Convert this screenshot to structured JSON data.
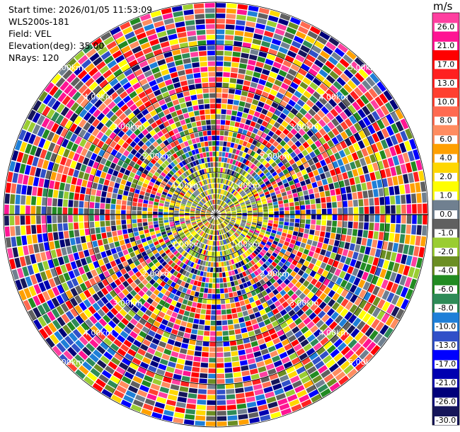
{
  "header": {
    "start_time": "Start time: 2026/01/05 11:53:09",
    "instrument": "WLS200s-181",
    "field": "Field: VEL",
    "elevation": "Elevation(deg): 35.00",
    "nrays": "NRays: 120"
  },
  "chart_data": {
    "type": "heatmap",
    "projection": "polar PPI scan",
    "field": "VEL",
    "nrays": 120,
    "range_rings_km": [
      1.0,
      2.0,
      3.0,
      4.0,
      5.0
    ],
    "ring_labels": [
      "1.00km",
      "2.00km",
      "3.00km",
      "4.00km",
      "5.00km"
    ],
    "max_range_km": 5.0,
    "colorbar": {
      "unit": "m/s",
      "ticks": [
        "26.0",
        "21.0",
        "17.0",
        "13.0",
        "10.0",
        "8.0",
        "6.0",
        "4.0",
        "2.0",
        "1.0",
        "0.0",
        "-1.0",
        "-2.0",
        "-4.0",
        "-6.0",
        "-8.0",
        "-10.0",
        "-13.0",
        "-17.0",
        "-21.0",
        "-26.0",
        "-30.0"
      ],
      "colors": [
        "#ff3fa0",
        "#ff1493",
        "#ff0000",
        "#ff2020",
        "#ff4030",
        "#ff6a50",
        "#ff8c60",
        "#ffa000",
        "#ffd700",
        "#ffff00",
        "#708090",
        "#606060",
        "#9acd32",
        "#6b8e23",
        "#228b22",
        "#2e8b57",
        "#1e7fd8",
        "#3050c8",
        "#0000ff",
        "#0000b0",
        "#00007a",
        "#16165a"
      ]
    }
  }
}
